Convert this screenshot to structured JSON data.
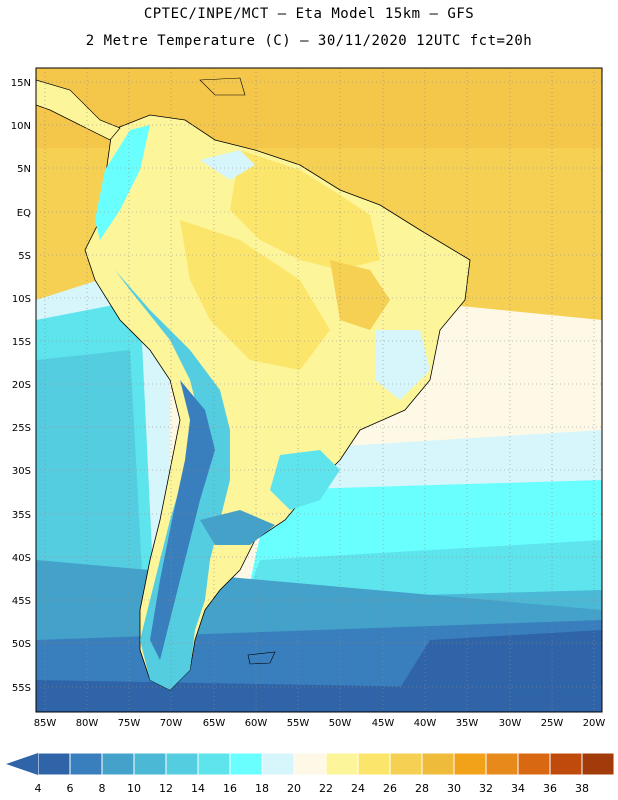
{
  "header": {
    "line1": "CPTEC/INPE/MCT –  Eta Model 15km – GFS",
    "line2": "2 Metre Temperature (C) – 30/11/2020 12UTC fct=20h"
  },
  "axes": {
    "lat_labels": [
      "15N",
      "10N",
      "5N",
      "EQ",
      "5S",
      "10S",
      "15S",
      "20S",
      "25S",
      "30S",
      "35S",
      "40S",
      "45S",
      "50S",
      "55S"
    ],
    "lon_labels": [
      "85W",
      "80W",
      "75W",
      "70W",
      "65W",
      "60W",
      "55W",
      "50W",
      "45W",
      "40W",
      "35W",
      "30W",
      "25W",
      "20W"
    ]
  },
  "colorbar": {
    "labels": [
      "4",
      "6",
      "8",
      "10",
      "12",
      "14",
      "16",
      "18",
      "20",
      "22",
      "24",
      "26",
      "28",
      "30",
      "32",
      "34",
      "36",
      "38"
    ],
    "colors": [
      "#2f64a8",
      "#3a7fbd",
      "#44a1c9",
      "#4bb8d6",
      "#54cde0",
      "#5ee4ec",
      "#6affff",
      "#d6f6fb",
      "#fdf9e6",
      "#fdf59a",
      "#fbe56a",
      "#f5d052",
      "#efbb3a",
      "#f2a218",
      "#e8891c",
      "#d86812",
      "#c04a0c",
      "#a33a0a"
    ]
  }
}
